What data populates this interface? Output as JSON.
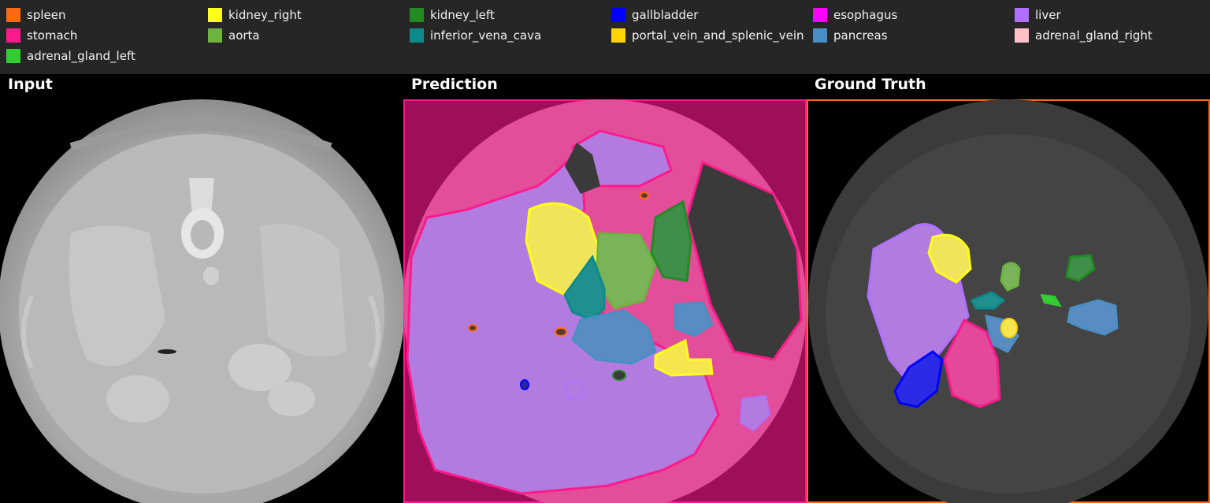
{
  "legend": [
    {
      "label": "spleen",
      "color": "#ff6a10"
    },
    {
      "label": "kidney_right",
      "color": "#ffff1a"
    },
    {
      "label": "kidney_left",
      "color": "#228b22"
    },
    {
      "label": "gallbladder",
      "color": "#0000ff"
    },
    {
      "label": "esophagus",
      "color": "#ff00ff"
    },
    {
      "label": "liver",
      "color": "#b070ff"
    },
    {
      "label": "stomach",
      "color": "#ff1a8c"
    },
    {
      "label": "aorta",
      "color": "#6db33f"
    },
    {
      "label": "inferior_vena_cava",
      "color": "#0d8a8a"
    },
    {
      "label": "portal_vein_and_splenic_vein",
      "color": "#ffd400"
    },
    {
      "label": "pancreas",
      "color": "#4a8fc4"
    },
    {
      "label": "adrenal_gland_right",
      "color": "#ffc0cb"
    },
    {
      "label": "adrenal_gland_left",
      "color": "#33cc33"
    }
  ],
  "panels": {
    "input_title": "Input",
    "prediction_title": "Prediction",
    "ground_truth_title": "Ground Truth"
  },
  "colors": {
    "prediction_border": "#ff1a8c",
    "ground_truth_border": "#ff6a10"
  }
}
